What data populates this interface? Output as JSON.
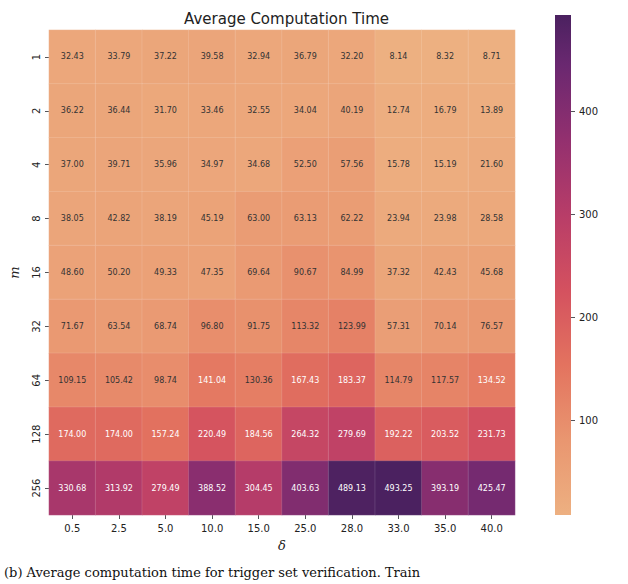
{
  "chart_data": {
    "type": "heatmap",
    "title": "Average Computation Time",
    "x_label": "δ",
    "y_label": "m",
    "x_categories": [
      "0.5",
      "2.5",
      "5.0",
      "10.0",
      "15.0",
      "25.0",
      "28.0",
      "33.0",
      "35.0",
      "40.0"
    ],
    "y_categories": [
      "1",
      "2",
      "4",
      "8",
      "16",
      "32",
      "64",
      "128",
      "256"
    ],
    "values": [
      [
        32.43,
        33.79,
        37.22,
        39.58,
        32.94,
        36.79,
        32.2,
        8.14,
        8.32,
        8.71
      ],
      [
        36.22,
        36.44,
        31.7,
        33.46,
        32.55,
        34.04,
        40.19,
        12.74,
        16.79,
        13.89
      ],
      [
        37.0,
        39.71,
        35.96,
        34.97,
        34.68,
        52.5,
        57.56,
        15.78,
        15.19,
        21.6
      ],
      [
        38.05,
        42.82,
        38.19,
        45.19,
        63.0,
        63.13,
        62.22,
        23.94,
        23.98,
        28.58
      ],
      [
        48.6,
        50.2,
        49.33,
        47.35,
        69.64,
        90.67,
        84.99,
        37.32,
        42.43,
        45.68
      ],
      [
        71.67,
        63.54,
        68.74,
        96.8,
        91.75,
        113.32,
        123.99,
        57.31,
        70.14,
        76.57
      ],
      [
        109.15,
        105.42,
        98.74,
        141.04,
        130.36,
        167.43,
        183.37,
        114.79,
        117.57,
        134.52
      ],
      [
        174.0,
        174.0,
        157.24,
        220.49,
        184.56,
        264.32,
        279.69,
        192.22,
        203.52,
        231.73
      ],
      [
        330.68,
        313.92,
        279.49,
        388.52,
        304.45,
        403.63,
        489.13,
        493.25,
        393.19,
        425.47
      ]
    ],
    "value_labels": [
      [
        "32.43",
        "33.79",
        "37.22",
        "39.58",
        "32.94",
        "36.79",
        "32.20",
        "8.14",
        "8.32",
        "8.71"
      ],
      [
        "36.22",
        "36.44",
        "31.70",
        "33.46",
        "32.55",
        "34.04",
        "40.19",
        "12.74",
        "16.79",
        "13.89"
      ],
      [
        "37.00",
        "39.71",
        "35.96",
        "34.97",
        "34.68",
        "52.50",
        "57.56",
        "15.78",
        "15.19",
        "21.60"
      ],
      [
        "38.05",
        "42.82",
        "38.19",
        "45.19",
        "63.00",
        "63.13",
        "62.22",
        "23.94",
        "23.98",
        "28.58"
      ],
      [
        "48.60",
        "50.20",
        "49.33",
        "47.35",
        "69.64",
        "90.67",
        "84.99",
        "37.32",
        "42.43",
        "45.68"
      ],
      [
        "71.67",
        "63.54",
        "68.74",
        "96.80",
        "91.75",
        "113.32",
        "123.99",
        "57.31",
        "70.14",
        "76.57"
      ],
      [
        "109.15",
        "105.42",
        "98.74",
        "141.04",
        "130.36",
        "167.43",
        "183.37",
        "114.79",
        "117.57",
        "134.52"
      ],
      [
        "174.00",
        "174.00",
        "157.24",
        "220.49",
        "184.56",
        "264.32",
        "279.69",
        "192.22",
        "203.52",
        "231.73"
      ],
      [
        "330.68",
        "313.92",
        "279.49",
        "388.52",
        "304.45",
        "403.63",
        "489.13",
        "493.25",
        "393.19",
        "425.47"
      ]
    ],
    "data_labels": true,
    "colorbar": {
      "range": [
        8.14,
        493.25
      ],
      "ticks": [
        100,
        200,
        300,
        400
      ]
    },
    "caption": "(b) Average computation time for trigger set verification. Train"
  }
}
